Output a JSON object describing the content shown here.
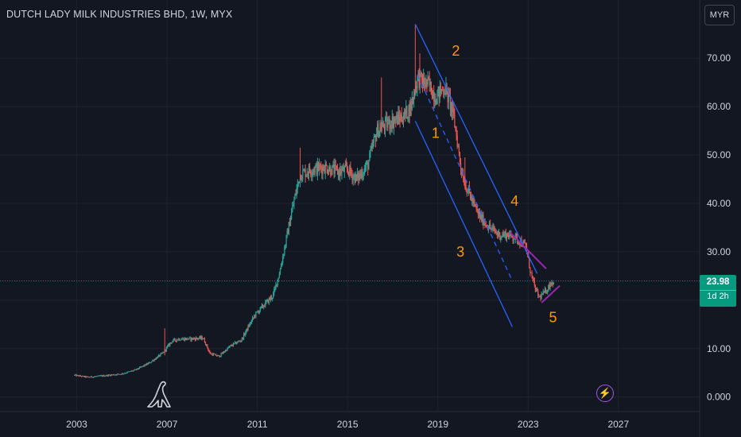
{
  "header": {
    "title": "DUTCH LADY MILK INDUSTRIES BHD, 1W, MYX",
    "currency_button": "MYR"
  },
  "price_tag": {
    "price": "23.98",
    "countdown": "1d 2h",
    "color": "#089981"
  },
  "colors": {
    "background": "#131722",
    "up": "#26a69a",
    "down": "#ef5350",
    "channel": "#2962ff",
    "trendline": "#9c27b0",
    "wave_label": "#ff9800",
    "grid": "#1e222d",
    "axis_text": "#d1d4dc"
  },
  "icons": {
    "logo": "dinosaur-logo-icon",
    "bolt": "lightning-bolt-icon"
  },
  "chart_data": {
    "type": "candlestick",
    "interval": "1W",
    "currency": "MYR",
    "x_ticks": [
      "2003",
      "2007",
      "2011",
      "2015",
      "2019",
      "2023",
      "2027"
    ],
    "y_ticks": [
      "0.000",
      "10.00",
      "20.00",
      "30.00",
      "40.00",
      "50.00",
      "60.00",
      "70.00"
    ],
    "ylim": [
      -3,
      82
    ],
    "xlim": [
      1999.6,
      2030.6
    ],
    "last_price": 23.98,
    "price_path": [
      [
        2002.9,
        4.5
      ],
      [
        2003.5,
        4.1
      ],
      [
        2004.2,
        4.4
      ],
      [
        2005.0,
        4.8
      ],
      [
        2005.6,
        5.6
      ],
      [
        2006.2,
        7.0
      ],
      [
        2006.8,
        9.0
      ],
      [
        2007.2,
        11.5
      ],
      [
        2007.5,
        12.0
      ],
      [
        2008.0,
        12.0
      ],
      [
        2008.6,
        12.2
      ],
      [
        2008.9,
        9.0
      ],
      [
        2009.3,
        8.4
      ],
      [
        2009.8,
        10.5
      ],
      [
        2010.3,
        11.8
      ],
      [
        2010.6,
        14.5
      ],
      [
        2010.9,
        17.0
      ],
      [
        2011.3,
        19.0
      ],
      [
        2011.7,
        21.0
      ],
      [
        2012.0,
        26.0
      ],
      [
        2012.3,
        33.0
      ],
      [
        2012.6,
        40.0
      ],
      [
        2012.9,
        46.0
      ],
      [
        2013.4,
        47.0
      ],
      [
        2014.0,
        47.5
      ],
      [
        2014.6,
        46.5
      ],
      [
        2015.0,
        47.0
      ],
      [
        2015.4,
        45.0
      ],
      [
        2015.9,
        48.0
      ],
      [
        2016.3,
        55.0
      ],
      [
        2016.6,
        56.0
      ],
      [
        2017.0,
        57.0
      ],
      [
        2017.5,
        58.0
      ],
      [
        2017.8,
        60.0
      ],
      [
        2018.1,
        66.0
      ],
      [
        2018.3,
        65.0
      ],
      [
        2018.6,
        64.5
      ],
      [
        2018.9,
        62.0
      ],
      [
        2019.3,
        64.0
      ],
      [
        2019.6,
        60.0
      ],
      [
        2019.8,
        55.0
      ],
      [
        2020.0,
        48.0
      ],
      [
        2020.2,
        44.0
      ],
      [
        2020.4,
        42.0
      ],
      [
        2020.7,
        38.5
      ],
      [
        2020.9,
        37.0
      ],
      [
        2021.3,
        35.0
      ],
      [
        2021.7,
        33.5
      ],
      [
        2022.1,
        33.5
      ],
      [
        2022.4,
        33.0
      ],
      [
        2022.7,
        32.0
      ],
      [
        2022.9,
        31.0
      ],
      [
        2023.1,
        26.0
      ],
      [
        2023.3,
        22.5
      ],
      [
        2023.5,
        20.5
      ],
      [
        2023.8,
        22.0
      ],
      [
        2024.0,
        23.5
      ],
      [
        2024.15,
        23.98
      ]
    ],
    "spikes": [
      {
        "x": 2006.9,
        "high": 14.2
      },
      {
        "x": 2012.9,
        "high": 51.5
      },
      {
        "x": 2016.5,
        "high": 66.0
      },
      {
        "x": 2018.0,
        "high": 77.0
      },
      {
        "x": 2018.2,
        "high": 71.0
      },
      {
        "x": 2020.2,
        "high": 49.5
      }
    ],
    "channel_lines": [
      {
        "from": [
          2018.0,
          77.0
        ],
        "to": [
          2023.4,
          25.5
        ]
      },
      {
        "from": [
          2018.0,
          57.0
        ],
        "to": [
          2022.3,
          14.5
        ]
      }
    ],
    "dashed_line": {
      "from": [
        2018.1,
        66.5
      ],
      "to": [
        2022.3,
        24.0
      ]
    },
    "trend_lines": [
      {
        "from": [
          2022.2,
          34.0
        ],
        "to": [
          2023.8,
          26.5
        ]
      },
      {
        "from": [
          2023.6,
          19.5
        ],
        "to": [
          2024.4,
          23.0
        ]
      }
    ],
    "wave_labels": [
      {
        "label": "1",
        "x": 2018.9,
        "y": 53.5
      },
      {
        "label": "2",
        "x": 2019.8,
        "y": 70.5
      },
      {
        "label": "3",
        "x": 2020.0,
        "y": 29.0
      },
      {
        "label": "4",
        "x": 2022.4,
        "y": 39.5
      },
      {
        "label": "5",
        "x": 2024.1,
        "y": 15.5
      }
    ]
  }
}
